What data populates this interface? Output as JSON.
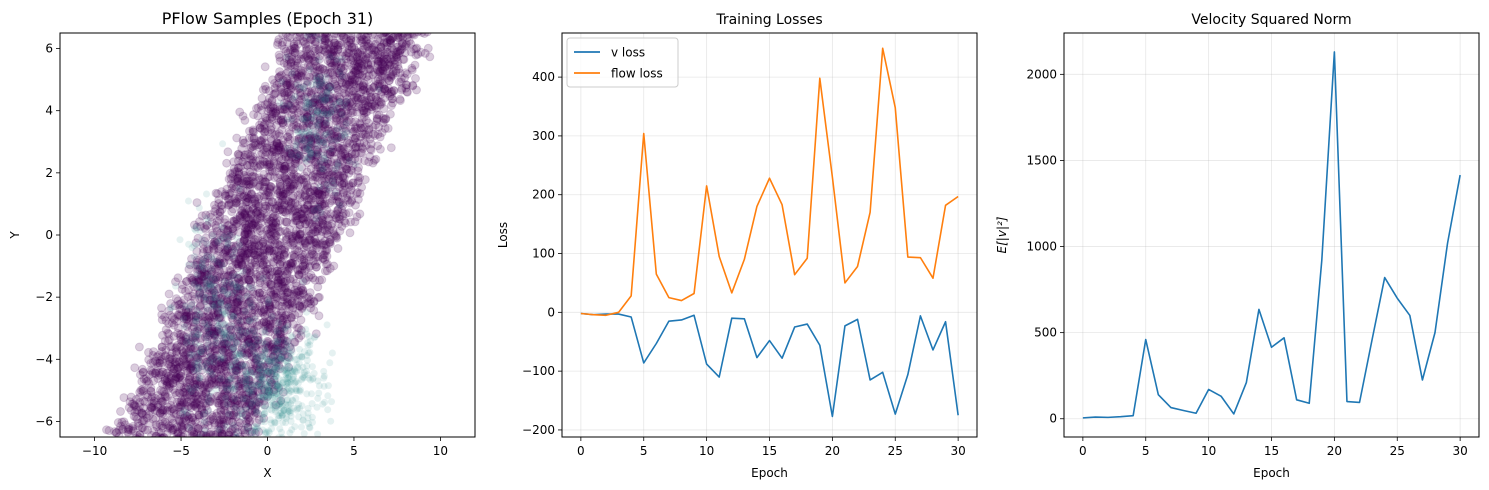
{
  "chart_data": [
    {
      "type": "scatter",
      "title": "PFlow Samples (Epoch 31)",
      "xlabel": "X",
      "ylabel": "Y",
      "xlim": [
        -12,
        12
      ],
      "ylim": [
        -6.5,
        6.5
      ],
      "xticks": [
        -10,
        -5,
        0,
        5,
        10
      ],
      "xtick_labels": [
        "−10",
        "−5",
        "0",
        "5",
        "10"
      ],
      "yticks": [
        -6,
        -4,
        -2,
        0,
        2,
        4,
        6
      ],
      "ytick_labels": [
        "−6",
        "−4",
        "−2",
        "0",
        "2",
        "4",
        "6"
      ],
      "grid": false,
      "point_color": "#440154",
      "dense_color": "#2a8a8a",
      "point_alpha": 0.2,
      "band": {
        "slope": 1.0,
        "intercept": -0.8,
        "halfwidth": 4.8
      },
      "n_points": 4500
    },
    {
      "type": "line",
      "title": "Training Losses",
      "xlabel": "Epoch",
      "ylabel": "Loss",
      "xlim": [
        -1.5,
        31.5
      ],
      "ylim": [
        -212,
        475
      ],
      "xticks": [
        0,
        5,
        10,
        15,
        20,
        25,
        30
      ],
      "xtick_labels": [
        "0",
        "5",
        "10",
        "15",
        "20",
        "25",
        "30"
      ],
      "yticks": [
        -200,
        -100,
        0,
        100,
        200,
        300,
        400
      ],
      "ytick_labels": [
        "−200",
        "−100",
        "0",
        "100",
        "200",
        "300",
        "400"
      ],
      "grid": true,
      "legend": "top-left",
      "x": [
        0,
        1,
        2,
        3,
        4,
        5,
        6,
        7,
        8,
        9,
        10,
        11,
        12,
        13,
        14,
        15,
        16,
        17,
        18,
        19,
        20,
        21,
        22,
        23,
        24,
        25,
        26,
        27,
        28,
        29,
        30
      ],
      "series": [
        {
          "name": "v loss",
          "color": "#1f77b4",
          "values": [
            -2,
            -4,
            -3,
            -3,
            -8,
            -86,
            -53,
            -15,
            -13,
            -5,
            -88,
            -110,
            -10,
            -11,
            -77,
            -48,
            -78,
            -25,
            -20,
            -56,
            -177,
            -23,
            -12,
            -115,
            -102,
            -173,
            -106,
            -6,
            -64,
            -16,
            -175
          ]
        },
        {
          "name": "flow loss",
          "color": "#ff7f0e",
          "values": [
            -2,
            -4,
            -5,
            0,
            28,
            304,
            65,
            25,
            20,
            32,
            215,
            95,
            33,
            90,
            180,
            228,
            183,
            64,
            92,
            398,
            230,
            50,
            78,
            170,
            449,
            348,
            94,
            93,
            58,
            182,
            197
          ]
        }
      ]
    },
    {
      "type": "line",
      "title": "Velocity Squared Norm",
      "xlabel": "Epoch",
      "ylabel": "E[|v|²]",
      "xlim": [
        -1.5,
        31.5
      ],
      "ylim": [
        -106,
        2240
      ],
      "xticks": [
        0,
        5,
        10,
        15,
        20,
        25,
        30
      ],
      "xtick_labels": [
        "0",
        "5",
        "10",
        "15",
        "20",
        "25",
        "30"
      ],
      "yticks": [
        0,
        500,
        1000,
        1500,
        2000
      ],
      "ytick_labels": [
        "0",
        "500",
        "1000",
        "1500",
        "2000"
      ],
      "grid": true,
      "x": [
        0,
        1,
        2,
        3,
        4,
        5,
        6,
        7,
        8,
        9,
        10,
        11,
        12,
        13,
        14,
        15,
        16,
        17,
        18,
        19,
        20,
        21,
        22,
        23,
        24,
        25,
        26,
        27,
        28,
        29,
        30
      ],
      "series": [
        {
          "name": "E[|v|²]",
          "color": "#1f77b4",
          "values": [
            5,
            10,
            8,
            12,
            18,
            460,
            140,
            65,
            48,
            32,
            170,
            130,
            28,
            210,
            635,
            415,
            470,
            110,
            90,
            920,
            2130,
            100,
            95,
            460,
            820,
            700,
            600,
            225,
            500,
            1020,
            1415
          ]
        }
      ]
    }
  ]
}
